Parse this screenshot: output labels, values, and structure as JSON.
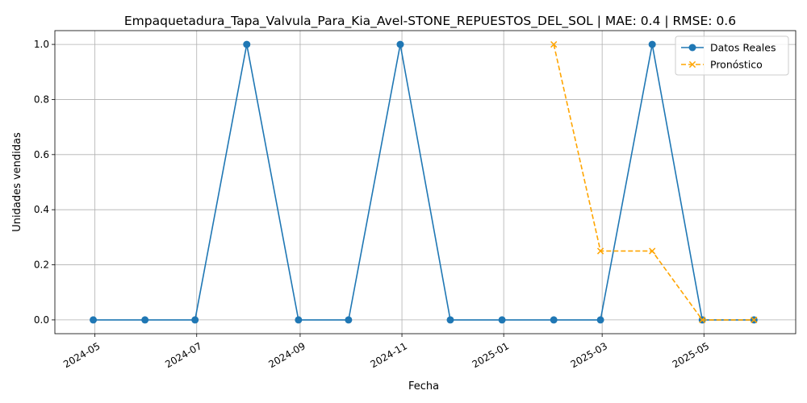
{
  "chart_data": {
    "type": "line",
    "title": "Empaquetadura_Tapa_Valvula_Para_Kia_Avel-STONE_REPUESTOS_DEL_SOL | MAE: 0.4 | RMSE: 0.6",
    "xlabel": "Fecha",
    "ylabel": "Unidades vendidas",
    "grid": true,
    "legend_position": "top-right",
    "xlim": [
      "2024-04-07",
      "2025-06-25"
    ],
    "ylim": [
      -0.05,
      1.05
    ],
    "x_ticks": [
      "2024-05-01",
      "2024-07-01",
      "2024-09-01",
      "2024-11-01",
      "2025-01-01",
      "2025-03-01",
      "2025-05-01"
    ],
    "x_tick_labels": [
      "2024-05",
      "2024-07",
      "2024-09",
      "2024-11",
      "2025-01",
      "2025-03",
      "2025-05"
    ],
    "y_ticks": [
      0.0,
      0.2,
      0.4,
      0.6,
      0.8,
      1.0
    ],
    "y_tick_labels": [
      "0.0",
      "0.2",
      "0.4",
      "0.6",
      "0.8",
      "1.0"
    ],
    "series": [
      {
        "name": "Datos Reales",
        "color": "#1f77b4",
        "line_style": "solid",
        "marker": "circle",
        "x": [
          "2024-04-30",
          "2024-05-31",
          "2024-06-30",
          "2024-07-31",
          "2024-08-31",
          "2024-09-30",
          "2024-10-31",
          "2024-11-30",
          "2024-12-31",
          "2025-01-31",
          "2025-02-28",
          "2025-03-31",
          "2025-04-30",
          "2025-05-31"
        ],
        "values": [
          0,
          0,
          0,
          1,
          0,
          0,
          1,
          0,
          0,
          0,
          0,
          1,
          0,
          0
        ]
      },
      {
        "name": "Pronóstico",
        "color": "#ffa500",
        "line_style": "dashed",
        "marker": "x",
        "x": [
          "2025-01-31",
          "2025-02-28",
          "2025-03-31",
          "2025-04-30",
          "2025-05-31"
        ],
        "values": [
          1.0,
          0.25,
          0.25,
          0.0,
          0.0
        ]
      }
    ]
  }
}
